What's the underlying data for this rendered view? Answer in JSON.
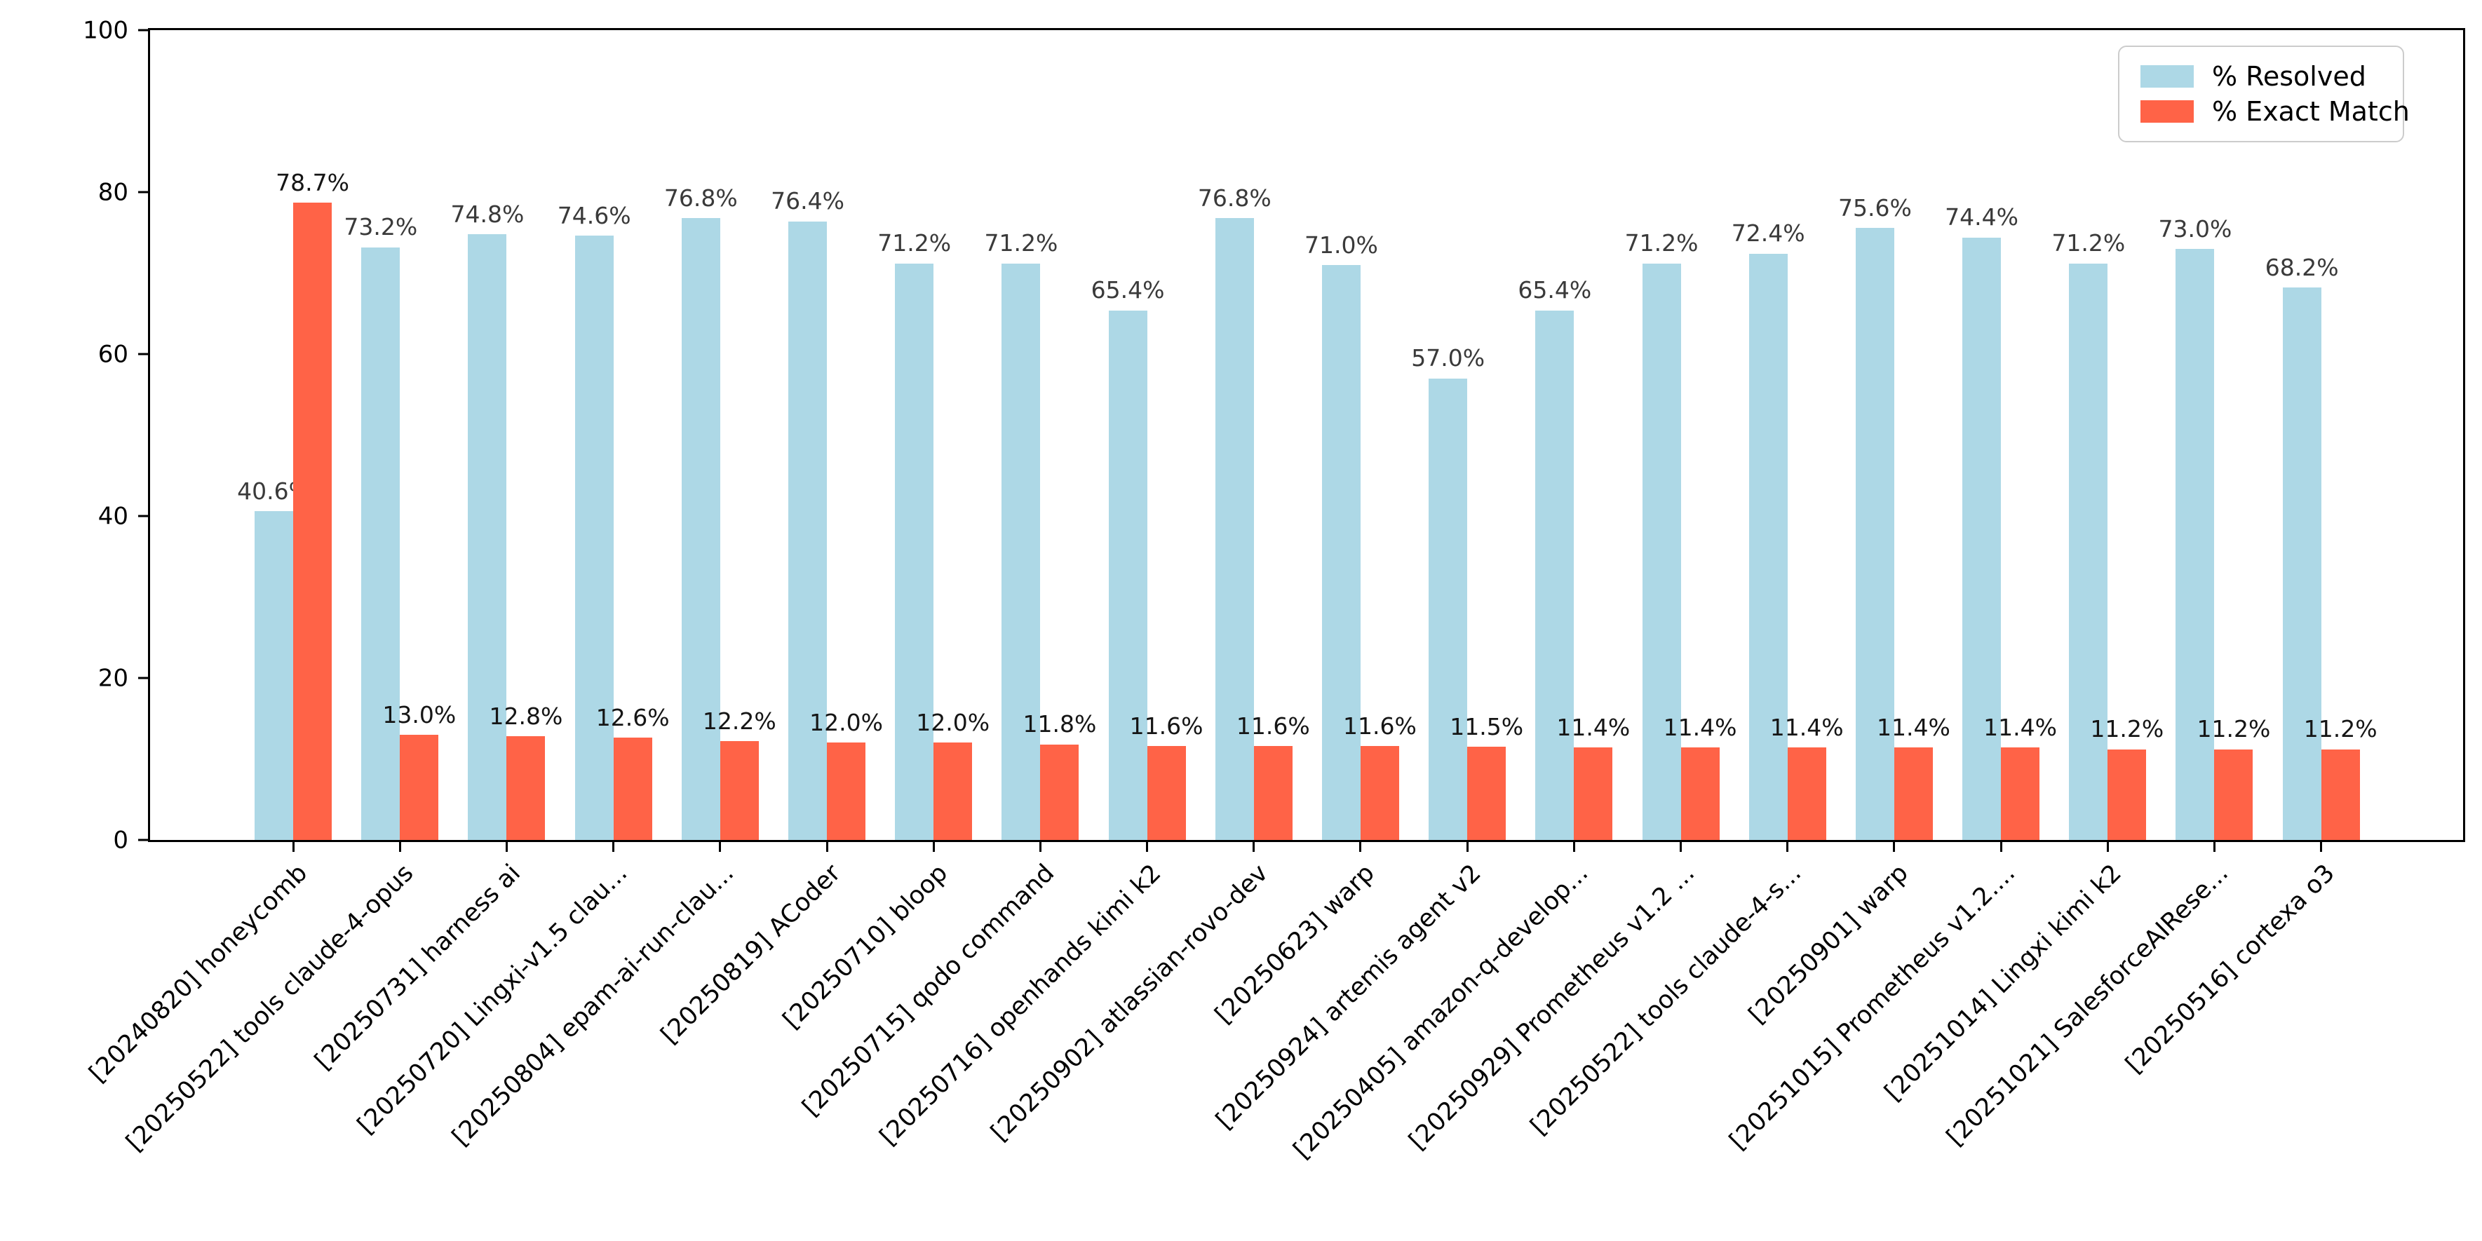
{
  "chart_data": {
    "type": "bar",
    "title": "",
    "xlabel": "",
    "ylabel": "",
    "ylim": [
      0,
      100
    ],
    "yticks": [
      0,
      20,
      40,
      60,
      80,
      100
    ],
    "grid": false,
    "legend_position": "upper right",
    "value_label_suffix": "%",
    "categories": [
      "[20240820] honeycomb",
      "[20250522] tools claude-4-opus",
      "[20250731] harness ai",
      "[20250720] Lingxi-v1.5 clau...",
      "[20250804] epam-ai-run-clau...",
      "[20250819] ACoder",
      "[20250710] bloop",
      "[20250715] qodo command",
      "[20250716] openhands kimi k2",
      "[20250902] atlassian-rovo-dev",
      "[20250623] warp",
      "[20250924] artemis agent v2",
      "[20250405] amazon-q-develop...",
      "[20250929] Prometheus v1.2 ...",
      "[20250522] tools claude-4-s...",
      "[20250901] warp",
      "[20251015] Prometheus v1.2....",
      "[20251014] Lingxi kimi k2",
      "[20251021] SalesforceAIRese...",
      "[20250516] cortexa o3"
    ],
    "series": [
      {
        "name": "% Resolved",
        "color": "#ADD8E6",
        "values": [
          40.6,
          73.2,
          74.8,
          74.6,
          76.8,
          76.4,
          71.2,
          71.2,
          65.4,
          76.8,
          71.0,
          57.0,
          65.4,
          71.2,
          72.4,
          75.6,
          74.4,
          71.2,
          73.0,
          68.2
        ]
      },
      {
        "name": "% Exact Match",
        "color": "#FF6347",
        "values": [
          78.7,
          13.0,
          12.8,
          12.6,
          12.2,
          12.0,
          12.0,
          11.8,
          11.6,
          11.6,
          11.6,
          11.5,
          11.4,
          11.4,
          11.4,
          11.4,
          11.4,
          11.2,
          11.2,
          11.2
        ]
      }
    ]
  },
  "legend": {
    "resolved_label": "% Resolved",
    "exact_label": "% Exact Match"
  }
}
